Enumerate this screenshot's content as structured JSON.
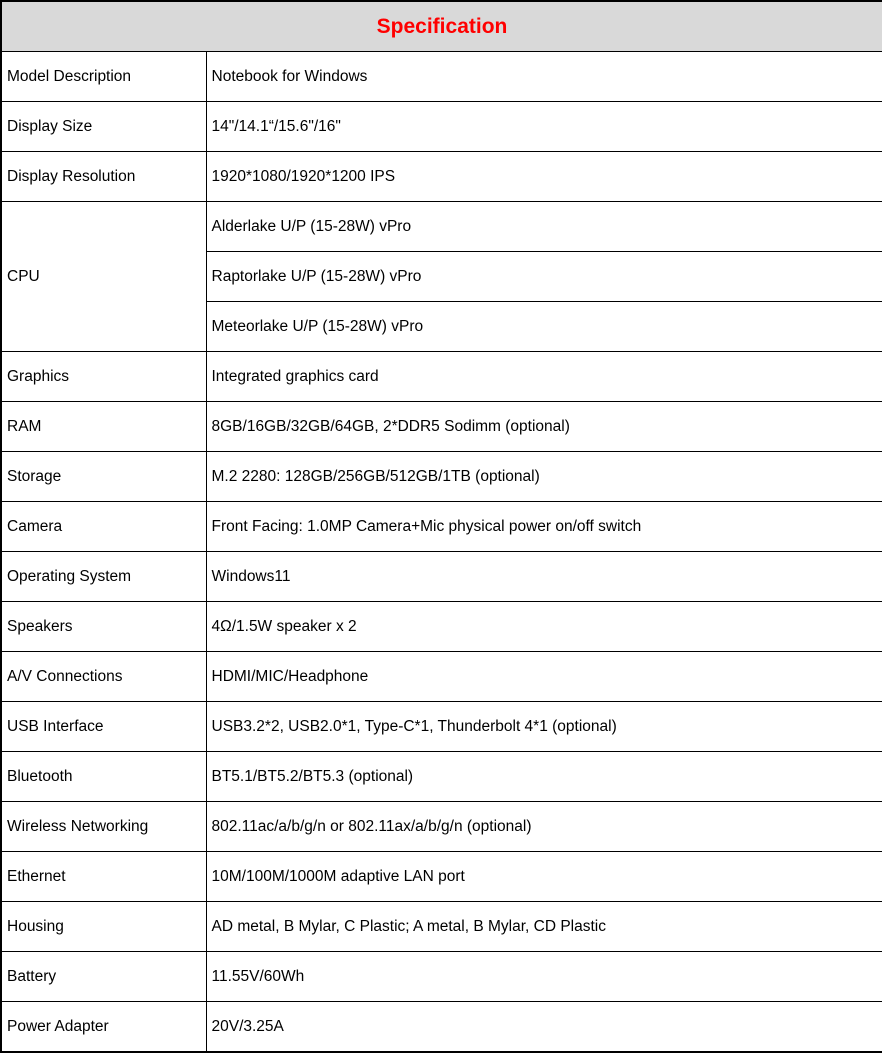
{
  "table": {
    "title": "Specification",
    "title_color": "#FF0000",
    "header_bg": "#D9D9D9",
    "border_color": "#000000",
    "rows": [
      {
        "label": "Model Description",
        "values": [
          "Notebook for Windows"
        ]
      },
      {
        "label": "Display Size",
        "values": [
          "14\"/14.1“/15.6\"/16\""
        ]
      },
      {
        "label": "Display Resolution",
        "values": [
          "1920*1080/1920*1200 IPS"
        ]
      },
      {
        "label": "CPU",
        "values": [
          "Alderlake U/P (15-28W) vPro",
          "Raptorlake U/P (15-28W) vPro",
          "Meteorlake U/P (15-28W) vPro"
        ]
      },
      {
        "label": "Graphics",
        "values": [
          "Integrated graphics card"
        ]
      },
      {
        "label": "RAM",
        "values": [
          "8GB/16GB/32GB/64GB, 2*DDR5 Sodimm (optional)"
        ]
      },
      {
        "label": "Storage",
        "values": [
          "M.2 2280: 128GB/256GB/512GB/1TB (optional)"
        ]
      },
      {
        "label": "Camera",
        "values": [
          "Front Facing: 1.0MP Camera+Mic physical power on/off switch"
        ]
      },
      {
        "label": "Operating System",
        "values": [
          "Windows11"
        ]
      },
      {
        "label": "Speakers",
        "values": [
          "4Ω/1.5W speaker x 2"
        ]
      },
      {
        "label": "A/V Connections",
        "values": [
          "HDMI/MIC/Headphone"
        ]
      },
      {
        "label": "USB Interface",
        "values": [
          "USB3.2*2, USB2.0*1, Type-C*1, Thunderbolt 4*1 (optional)"
        ]
      },
      {
        "label": "Bluetooth",
        "values": [
          "BT5.1/BT5.2/BT5.3 (optional)"
        ]
      },
      {
        "label": "Wireless Networking",
        "values": [
          "802.11ac/a/b/g/n or 802.11ax/a/b/g/n (optional)"
        ]
      },
      {
        "label": "Ethernet",
        "values": [
          "10M/100M/1000M adaptive LAN port"
        ]
      },
      {
        "label": "Housing",
        "values": [
          "AD metal, B Mylar, C Plastic; A metal, B Mylar, CD Plastic"
        ]
      },
      {
        "label": "Battery",
        "values": [
          "11.55V/60Wh"
        ]
      },
      {
        "label": "Power Adapter",
        "values": [
          "20V/3.25A"
        ]
      }
    ]
  }
}
